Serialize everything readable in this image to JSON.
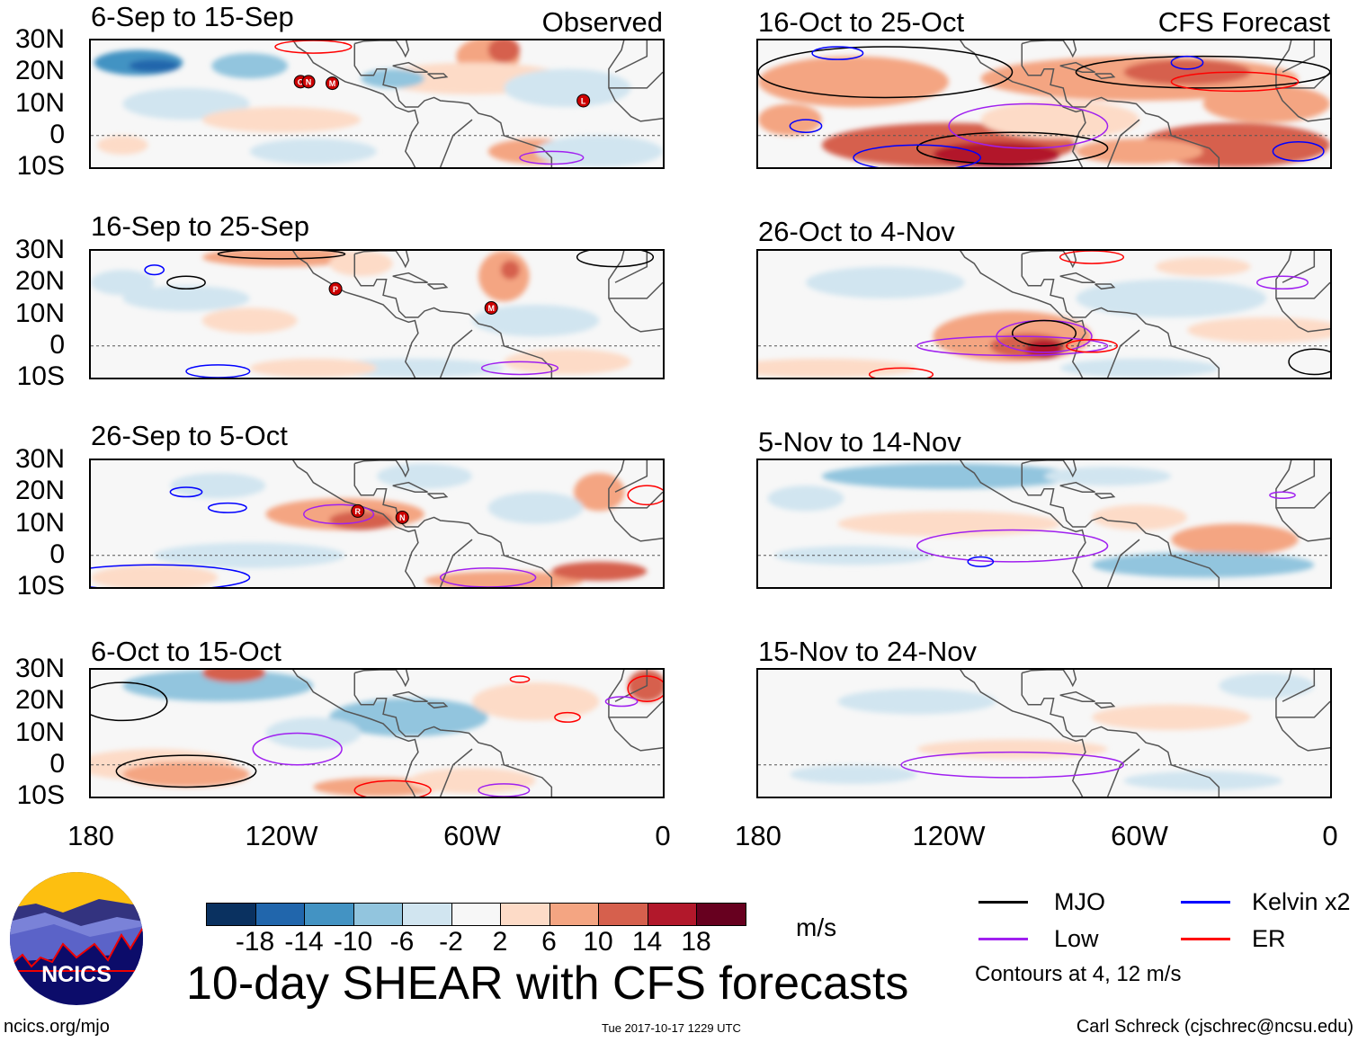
{
  "figure_title": "10-day SHEAR with CFS forecasts",
  "columns": {
    "left_label": "Observed",
    "right_label": "CFS Forecast"
  },
  "panels": [
    {
      "title": "6-Sep to 15-Sep",
      "column": "left",
      "row": 0,
      "storms": [
        {
          "name": "O",
          "lon": -114,
          "lat": 17
        },
        {
          "name": "N",
          "lon": -111.5,
          "lat": 17
        },
        {
          "name": "M",
          "lon": -104,
          "lat": 16.5
        },
        {
          "name": "L",
          "lon": -25,
          "lat": 11
        }
      ]
    },
    {
      "title": "16-Sep to 25-Sep",
      "column": "left",
      "row": 1,
      "storms": [
        {
          "name": "P",
          "lon": -103,
          "lat": 18
        },
        {
          "name": "M",
          "lon": -54,
          "lat": 12
        }
      ]
    },
    {
      "title": "26-Sep to 5-Oct",
      "column": "left",
      "row": 2,
      "storms": [
        {
          "name": "R",
          "lon": -96,
          "lat": 14
        },
        {
          "name": "N",
          "lon": -82,
          "lat": 12
        }
      ]
    },
    {
      "title": "6-Oct to 15-Oct",
      "column": "left",
      "row": 3,
      "storms": []
    },
    {
      "title": "16-Oct to 25-Oct",
      "column": "right",
      "row": 0,
      "storms": []
    },
    {
      "title": "26-Oct to 4-Nov",
      "column": "right",
      "row": 1,
      "storms": []
    },
    {
      "title": "5-Nov to 14-Nov",
      "column": "right",
      "row": 2,
      "storms": []
    },
    {
      "title": "15-Nov to 24-Nov",
      "column": "right",
      "row": 3,
      "storms": []
    }
  ],
  "axes": {
    "lat_labels": [
      "30N",
      "20N",
      "10N",
      "0",
      "10S"
    ],
    "lon_labels": [
      "180",
      "120W",
      "60W",
      "0"
    ],
    "lat_range": [
      -10,
      30
    ],
    "lon_range": [
      -180,
      0
    ]
  },
  "colorbar": {
    "units": "m/s",
    "tick_labels": [
      "-18",
      "-14",
      "-10",
      "-6",
      "-2",
      "2",
      "6",
      "10",
      "14",
      "18"
    ],
    "colors": [
      "#0a3160",
      "#2166ac",
      "#4393c3",
      "#92c5de",
      "#d1e5f0",
      "#f7f7f7",
      "#fddbc7",
      "#f4a582",
      "#d6604d",
      "#b2182b",
      "#67001f"
    ]
  },
  "legend": {
    "items": [
      {
        "label": "MJO",
        "color": "#000000"
      },
      {
        "label": "Kelvin x2",
        "color": "#0000ff"
      },
      {
        "label": "Low",
        "color": "#a020f0"
      },
      {
        "label": "ER",
        "color": "#ff0000"
      }
    ],
    "note": "Contours at 4, 12 m/s"
  },
  "logo": {
    "text": "NCICS"
  },
  "footer": {
    "url": "ncics.org/mjo",
    "timestamp": "Tue 2017-10-17 1229 UTC",
    "author": "Carl Schreck (cjschrec@ncsu.edu)"
  }
}
